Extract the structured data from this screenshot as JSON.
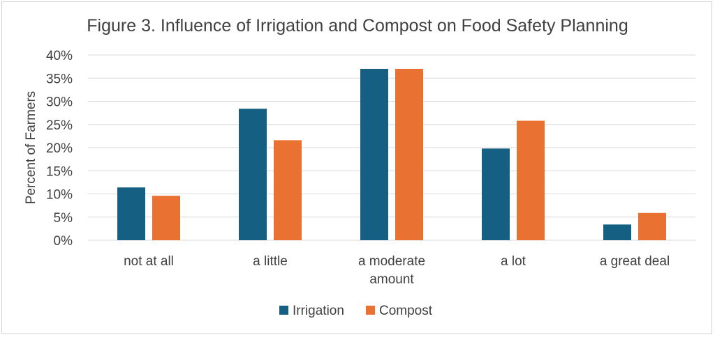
{
  "chart_data": {
    "type": "bar",
    "title": "Figure 3. Influence of Irrigation and Compost on Food Safety Planning",
    "xlabel": "",
    "ylabel": "Percent of Farmers",
    "categories": [
      [
        "not at all"
      ],
      [
        "a little"
      ],
      [
        "a moderate",
        "amount"
      ],
      [
        "a lot"
      ],
      [
        "a great deal"
      ]
    ],
    "series": [
      {
        "name": "Irrigation",
        "color": "#156082",
        "values": [
          11.4,
          28.4,
          37.0,
          19.8,
          3.4
        ]
      },
      {
        "name": "Compost",
        "color": "#E97132",
        "values": [
          9.6,
          21.6,
          37.0,
          25.8,
          5.9
        ]
      }
    ],
    "ylim": [
      0,
      40
    ],
    "yticks": [
      0,
      5,
      10,
      15,
      20,
      25,
      30,
      35,
      40
    ],
    "ytick_labels": [
      "0%",
      "5%",
      "10%",
      "15%",
      "20%",
      "25%",
      "30%",
      "35%",
      "40%"
    ],
    "grid": true,
    "legend_position": "bottom"
  }
}
